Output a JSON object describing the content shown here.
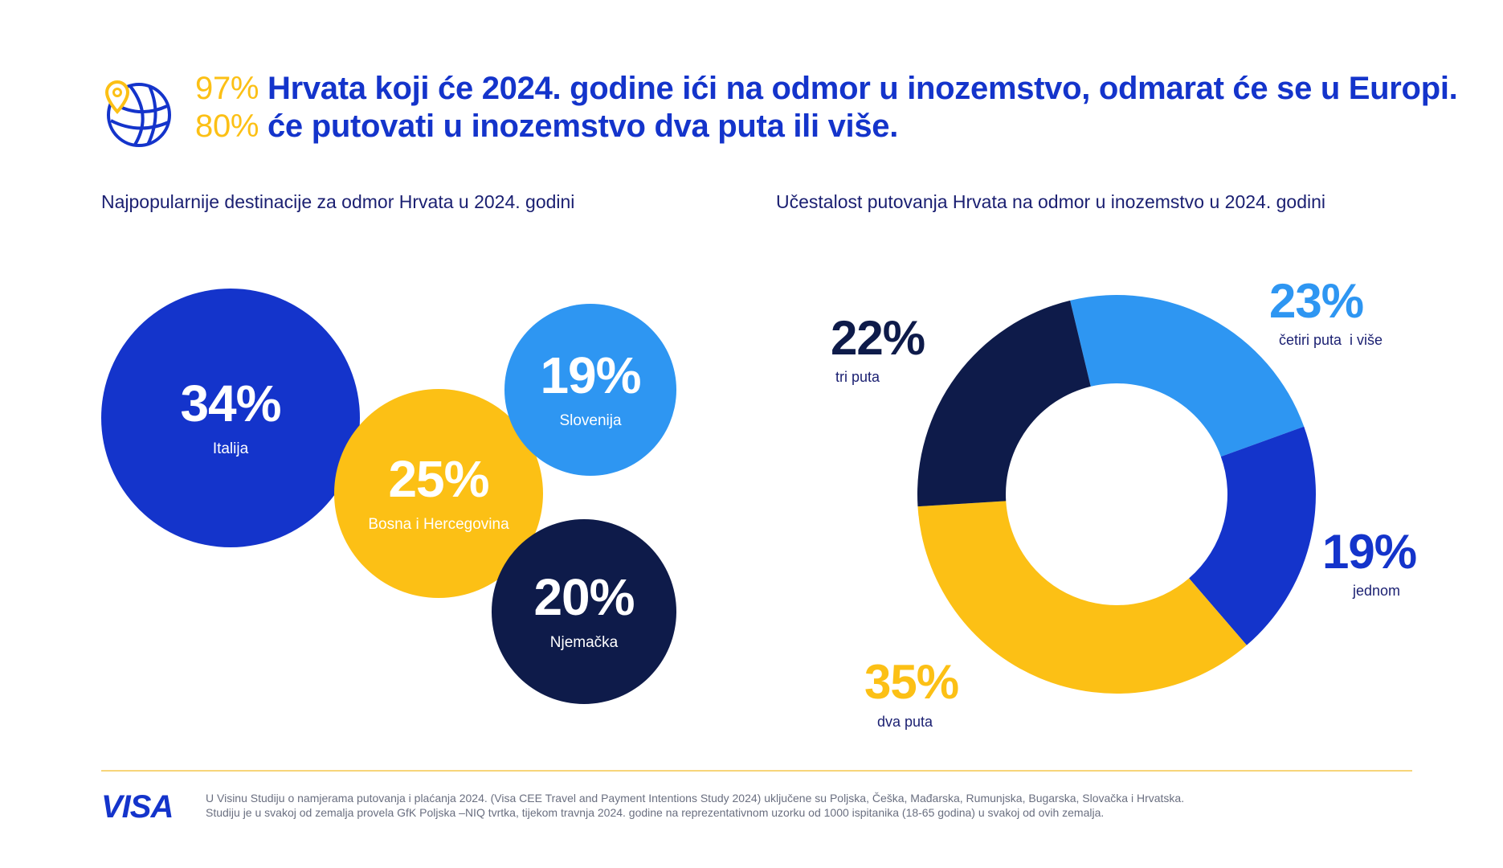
{
  "header": {
    "line1_pct": "97%",
    "line1_text": " Hrvata koji će 2024. godine ići na odmor u inozemstvo, odmarat će se u Europi.",
    "line2_pct": "80%",
    "line2_text": " će putovati u inozemstvo dva puta ili više.",
    "icon": "globe-pin-icon"
  },
  "chart_data": [
    {
      "type": "bubble",
      "title": "Najpopularnije destinacije za odmor Hrvata u 2024. godini",
      "categories": [
        "Italija",
        "Bosna i Hercegovina",
        "Slovenija",
        "Njemačka"
      ],
      "values": [
        34,
        25,
        19,
        20
      ],
      "labels": [
        "34%",
        "25%",
        "19%",
        "20%"
      ],
      "colors": [
        "#1434CB",
        "#FCC015",
        "#2E96F2",
        "#0E1B4A"
      ]
    },
    {
      "type": "pie",
      "title": "Učestalost putovanja Hrvata na odmor u inozemstvo u 2024. godini",
      "categories": [
        "četiri puta  i više",
        "jednom",
        "dva puta",
        "tri puta"
      ],
      "values": [
        23,
        19,
        35,
        22
      ],
      "labels": [
        "23%",
        "19%",
        "35%",
        "22%"
      ],
      "colors": [
        "#2E96F2",
        "#1434CB",
        "#FCC015",
        "#0E1B4A"
      ]
    }
  ],
  "footer": {
    "logo": "VISA",
    "note1": "U Visinu Studiju o namjerama putovanja i plaćanja 2024. (Visa CEE Travel and Payment Intentions Study 2024) uključene su Poljska, Češka, Mađarska, Rumunjska, Bugarska, Slovačka i Hrvatska.",
    "note2": "Studiju je u svakoj od zemalja provela GfK Poljska –NIQ tvrtka,  tijekom travnja 2024. godine na reprezentativnom uzorku od 1000 ispitanika (18-65 godina) u svakoj od ovih zemalja."
  }
}
